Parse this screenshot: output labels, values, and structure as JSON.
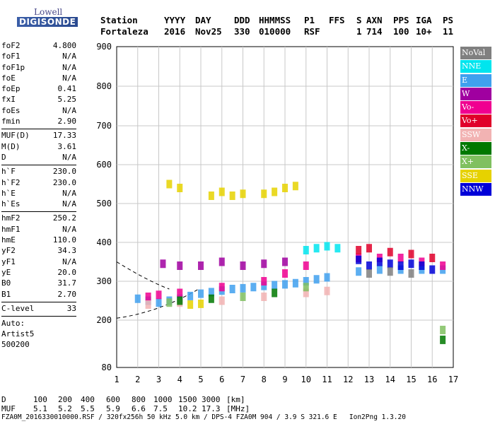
{
  "logo": {
    "line1": "Lowell",
    "line2": "DIGISONDE"
  },
  "header": {
    "labels": [
      "Station",
      "YYYY",
      "DAY",
      "DDD",
      "HHMMSS",
      "P1",
      "FFS",
      "S",
      "AXN",
      "PPS",
      "IGA",
      "PS"
    ],
    "values": [
      "Fortaleza",
      "2016",
      "Nov25",
      "330",
      "010000",
      "RSF",
      "1",
      "714",
      "100",
      "10+",
      "11"
    ]
  },
  "params": [
    [
      {
        "k": "foF2",
        "v": "4.800"
      },
      {
        "k": "foF1",
        "v": "N/A"
      },
      {
        "k": "foF1p",
        "v": "N/A"
      },
      {
        "k": "foE",
        "v": "N/A"
      },
      {
        "k": "foEp",
        "v": "0.41"
      },
      {
        "k": "fxI",
        "v": "5.25"
      },
      {
        "k": "foEs",
        "v": "N/A"
      },
      {
        "k": "fmin",
        "v": "2.90"
      }
    ],
    [
      {
        "k": "MUF(D)",
        "v": "17.33"
      },
      {
        "k": "M(D)",
        "v": "3.61"
      },
      {
        "k": "D",
        "v": "N/A"
      }
    ],
    [
      {
        "k": "h`F",
        "v": "230.0"
      },
      {
        "k": "h`F2",
        "v": "230.0"
      },
      {
        "k": "h`E",
        "v": "N/A"
      },
      {
        "k": "h`Es",
        "v": "N/A"
      }
    ],
    [
      {
        "k": "hmF2",
        "v": "250.2"
      },
      {
        "k": "hmF1",
        "v": "N/A"
      },
      {
        "k": "hmE",
        "v": "110.0"
      },
      {
        "k": "yF2",
        "v": "34.3"
      },
      {
        "k": "yF1",
        "v": "N/A"
      },
      {
        "k": "yE",
        "v": "20.0"
      },
      {
        "k": "B0",
        "v": "31.7"
      },
      {
        "k": "B1",
        "v": "2.70"
      }
    ],
    [
      {
        "k": "C-level",
        "v": "33"
      }
    ]
  ],
  "auto": {
    "line1": "Auto:",
    "line2": "Artist5",
    "line3": "500200"
  },
  "legend": [
    {
      "label": "NoVal",
      "color": "#808080"
    },
    {
      "label": "NNE",
      "color": "#00e5ee"
    },
    {
      "label": "E",
      "color": "#3fa0ee"
    },
    {
      "label": "W",
      "color": "#a000a0"
    },
    {
      "label": "Vo-",
      "color": "#f00090"
    },
    {
      "label": "Vo+",
      "color": "#e0002a"
    },
    {
      "label": "SSW",
      "color": "#f2b3b3"
    },
    {
      "label": "X-",
      "color": "#007800"
    },
    {
      "label": "X+",
      "color": "#80c060"
    },
    {
      "label": "SSE",
      "color": "#e6d200"
    },
    {
      "label": "NNW",
      "color": "#0000d8"
    }
  ],
  "chart_data": {
    "type": "scatter",
    "x_ticks": [
      "1",
      "2",
      "3",
      "4",
      "5",
      "6",
      "7",
      "8",
      "9",
      "10",
      "11",
      "12",
      "13",
      "14",
      "15",
      "16",
      "17"
    ],
    "y_ticks": [
      "80",
      "200",
      "300",
      "400",
      "500",
      "600",
      "700",
      "800",
      "900"
    ],
    "xlim": [
      1,
      17
    ],
    "ylim": [
      80,
      900
    ],
    "grid": true,
    "legend_position": "right",
    "series": [
      {
        "name": "E",
        "color": "#3fa0ee",
        "points": [
          [
            2.0,
            255
          ],
          [
            2.5,
            250
          ],
          [
            3.0,
            245
          ],
          [
            3.5,
            250
          ],
          [
            4.0,
            255
          ],
          [
            4.5,
            262
          ],
          [
            5.0,
            268
          ],
          [
            5.5,
            272
          ],
          [
            6.0,
            276
          ],
          [
            6.5,
            280
          ],
          [
            7.0,
            282
          ],
          [
            7.5,
            285
          ],
          [
            8.0,
            288
          ],
          [
            8.5,
            290
          ],
          [
            9.0,
            292
          ],
          [
            9.5,
            295
          ],
          [
            10.0,
            300
          ],
          [
            10.5,
            305
          ],
          [
            11.0,
            310
          ],
          [
            12.5,
            325
          ],
          [
            13.5,
            330
          ],
          [
            14.5,
            330
          ],
          [
            15.5,
            330
          ],
          [
            16.5,
            330
          ]
        ]
      },
      {
        "name": "NNE",
        "color": "#00e5ee",
        "points": [
          [
            10.0,
            380
          ],
          [
            10.5,
            385
          ],
          [
            11.0,
            390
          ],
          [
            11.5,
            385
          ]
        ]
      },
      {
        "name": "W",
        "color": "#a000a0",
        "points": [
          [
            3.2,
            345
          ],
          [
            4.0,
            340
          ],
          [
            5.0,
            340
          ],
          [
            6.0,
            350
          ],
          [
            7.0,
            340
          ],
          [
            8.0,
            345
          ],
          [
            9.0,
            350
          ]
        ]
      },
      {
        "name": "Vo-",
        "color": "#f00090",
        "points": [
          [
            2.5,
            260
          ],
          [
            3.0,
            265
          ],
          [
            4.0,
            270
          ],
          [
            6.0,
            285
          ],
          [
            8.0,
            300
          ],
          [
            9.0,
            320
          ],
          [
            10.0,
            340
          ],
          [
            12.5,
            360
          ],
          [
            13.5,
            360
          ],
          [
            14.5,
            360
          ],
          [
            15.5,
            350
          ],
          [
            16.5,
            340
          ]
        ]
      },
      {
        "name": "Vo+",
        "color": "#e0002a",
        "points": [
          [
            12.5,
            380
          ],
          [
            13.0,
            385
          ],
          [
            14.0,
            375
          ],
          [
            15.0,
            370
          ],
          [
            16.0,
            360
          ]
        ]
      },
      {
        "name": "SSW",
        "color": "#f2b3b3",
        "points": [
          [
            2.5,
            240
          ],
          [
            4.0,
            245
          ],
          [
            6.0,
            250
          ],
          [
            8.0,
            260
          ],
          [
            10.0,
            270
          ],
          [
            11.0,
            275
          ]
        ]
      },
      {
        "name": "X-",
        "color": "#007800",
        "points": [
          [
            4.0,
            250
          ],
          [
            5.5,
            255
          ],
          [
            8.5,
            270
          ],
          [
            16.5,
            150
          ]
        ]
      },
      {
        "name": "X+",
        "color": "#80c060",
        "points": [
          [
            3.5,
            245
          ],
          [
            7.0,
            260
          ],
          [
            10.0,
            285
          ],
          [
            16.5,
            175
          ]
        ]
      },
      {
        "name": "SSE",
        "color": "#e6d200",
        "points": [
          [
            3.5,
            550
          ],
          [
            4.0,
            540
          ],
          [
            5.5,
            520
          ],
          [
            6.0,
            530
          ],
          [
            6.5,
            520
          ],
          [
            7.0,
            525
          ],
          [
            8.0,
            525
          ],
          [
            8.5,
            530
          ],
          [
            9.0,
            540
          ],
          [
            9.5,
            545
          ],
          [
            4.5,
            240
          ],
          [
            5.0,
            242
          ]
        ]
      },
      {
        "name": "NNW",
        "color": "#0000d8",
        "points": [
          [
            12.5,
            355
          ],
          [
            13.0,
            340
          ],
          [
            13.5,
            350
          ],
          [
            14.0,
            345
          ],
          [
            14.5,
            340
          ],
          [
            15.0,
            345
          ],
          [
            15.5,
            340
          ],
          [
            16.0,
            330
          ]
        ]
      },
      {
        "name": "NoVal",
        "color": "#808080",
        "points": [
          [
            13.0,
            320
          ],
          [
            14.0,
            325
          ],
          [
            15.0,
            320
          ]
        ]
      }
    ]
  },
  "bottom": {
    "d_label": "D",
    "d_values": [
      "100",
      "200",
      "400",
      "600",
      "800",
      "1000",
      "1500",
      "3000"
    ],
    "d_unit": "[km]",
    "muf_label": "MUF",
    "muf_values": [
      "5.1",
      "5.2",
      "5.5",
      "5.9",
      "6.6",
      "7.5",
      "10.2",
      "17.3"
    ],
    "muf_unit": "[MHz]"
  },
  "footer": "FZA0M_2016330010000.RSF / 320fx256h 50 kHz 5.0 km / DPS-4 FZA0M 904 / 3.9 S 321.6 E   Ion2Png 1.3.20"
}
